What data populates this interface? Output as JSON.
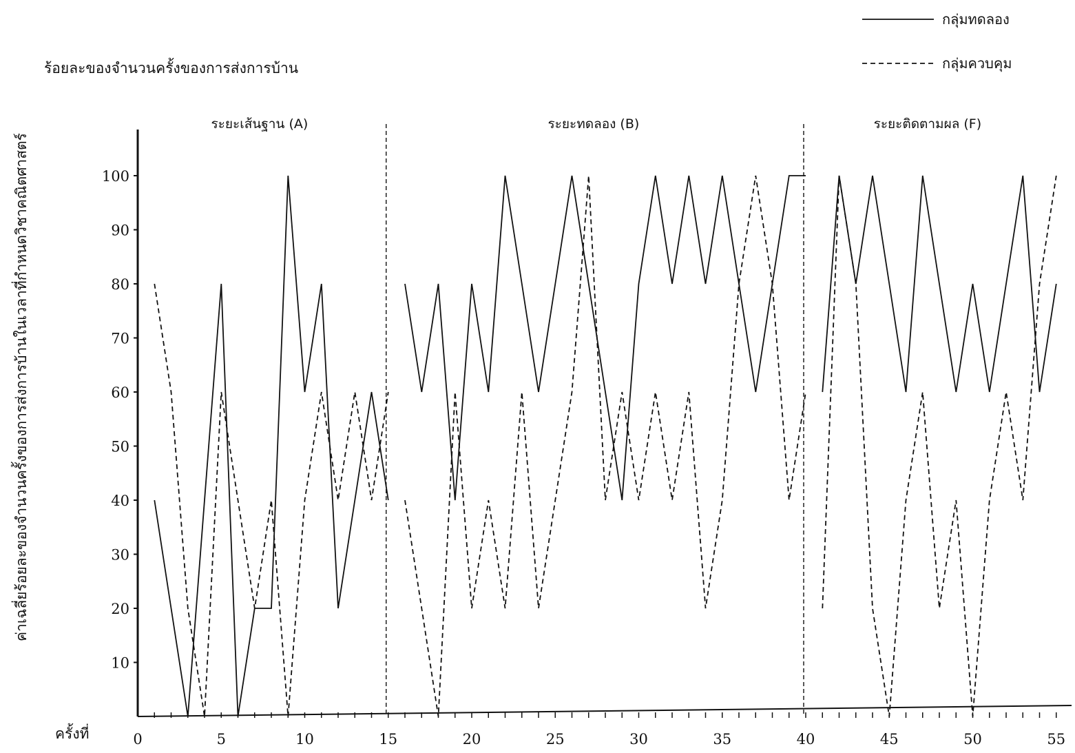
{
  "chart_data": {
    "type": "line",
    "title": "ร้อยละของจำนวนครั้งของการส่งการบ้าน",
    "ylabel": "ค่าเฉลี่ยร้อยละของจำนวนครั้งของการส่งการบ้านในเวลาที่กำหนดวิชาคณิตศาสตร์",
    "xlabel": "ครั้งที่",
    "xlim": [
      0,
      55
    ],
    "ylim": [
      0,
      100
    ],
    "xticks": [
      0,
      5,
      10,
      15,
      20,
      25,
      30,
      35,
      40,
      45,
      50,
      55
    ],
    "yticks": [
      10,
      20,
      30,
      40,
      50,
      60,
      70,
      80,
      90,
      100
    ],
    "grid": false,
    "legend_position": "top-right",
    "phases": [
      {
        "label": "ระยะเส้นฐาน (A)",
        "start": 0,
        "end": 15
      },
      {
        "label": "ระยะทดลอง (B)",
        "start": 15,
        "end": 40
      },
      {
        "label": "ระยะติดตามผล (F)",
        "start": 40,
        "end": 55
      }
    ],
    "phase_boundaries": [
      15,
      40
    ],
    "series": [
      {
        "name": "กลุ่มทดลอง",
        "style": "solid",
        "segments": [
          [
            [
              1,
              40
            ],
            [
              2,
              20
            ],
            [
              3,
              0
            ],
            [
              4,
              40
            ],
            [
              5,
              80
            ],
            [
              6,
              0
            ],
            [
              7,
              20
            ],
            [
              8,
              20
            ],
            [
              9,
              100
            ],
            [
              10,
              60
            ],
            [
              11,
              80
            ],
            [
              12,
              20
            ],
            [
              13,
              40
            ],
            [
              14,
              60
            ],
            [
              15,
              40
            ]
          ],
          [
            [
              16,
              80
            ],
            [
              17,
              60
            ],
            [
              18,
              80
            ],
            [
              19,
              40
            ],
            [
              20,
              80
            ],
            [
              21,
              60
            ],
            [
              22,
              100
            ],
            [
              23,
              80
            ],
            [
              24,
              60
            ],
            [
              25,
              80
            ],
            [
              26,
              100
            ],
            [
              27,
              80
            ],
            [
              28,
              60
            ],
            [
              29,
              40
            ],
            [
              30,
              80
            ],
            [
              31,
              100
            ],
            [
              32,
              80
            ],
            [
              33,
              100
            ],
            [
              34,
              80
            ],
            [
              35,
              100
            ],
            [
              36,
              80
            ],
            [
              37,
              60
            ],
            [
              38,
              80
            ],
            [
              39,
              100
            ],
            [
              40,
              100
            ]
          ],
          [
            [
              41,
              60
            ],
            [
              42,
              100
            ],
            [
              43,
              80
            ],
            [
              44,
              100
            ],
            [
              45,
              80
            ],
            [
              46,
              60
            ],
            [
              47,
              100
            ],
            [
              48,
              80
            ],
            [
              49,
              60
            ],
            [
              50,
              80
            ],
            [
              51,
              60
            ],
            [
              52,
              80
            ],
            [
              53,
              100
            ],
            [
              54,
              60
            ],
            [
              55,
              80
            ]
          ]
        ]
      },
      {
        "name": "กลุ่มควบคุม",
        "style": "dashed",
        "segments": [
          [
            [
              1,
              80
            ],
            [
              2,
              60
            ],
            [
              3,
              20
            ],
            [
              4,
              0
            ],
            [
              5,
              60
            ],
            [
              6,
              40
            ],
            [
              7,
              20
            ],
            [
              8,
              40
            ],
            [
              9,
              0
            ],
            [
              10,
              40
            ],
            [
              11,
              60
            ],
            [
              12,
              40
            ],
            [
              13,
              60
            ],
            [
              14,
              40
            ],
            [
              15,
              60
            ]
          ],
          [
            [
              16,
              40
            ],
            [
              17,
              20
            ],
            [
              18,
              0
            ],
            [
              19,
              60
            ],
            [
              20,
              20
            ],
            [
              21,
              40
            ],
            [
              22,
              20
            ],
            [
              23,
              60
            ],
            [
              24,
              20
            ],
            [
              25,
              40
            ],
            [
              26,
              60
            ],
            [
              27,
              100
            ],
            [
              28,
              40
            ],
            [
              29,
              60
            ],
            [
              30,
              40
            ],
            [
              31,
              60
            ],
            [
              32,
              40
            ],
            [
              33,
              60
            ],
            [
              34,
              20
            ],
            [
              35,
              40
            ],
            [
              36,
              80
            ],
            [
              37,
              100
            ],
            [
              38,
              80
            ],
            [
              39,
              40
            ],
            [
              40,
              60
            ]
          ],
          [
            [
              41,
              20
            ],
            [
              42,
              100
            ],
            [
              43,
              80
            ],
            [
              44,
              20
            ],
            [
              45,
              0
            ],
            [
              46,
              40
            ],
            [
              47,
              60
            ],
            [
              48,
              20
            ],
            [
              49,
              40
            ],
            [
              50,
              0
            ],
            [
              51,
              40
            ],
            [
              52,
              60
            ],
            [
              53,
              40
            ],
            [
              54,
              80
            ],
            [
              55,
              100
            ]
          ]
        ]
      }
    ]
  }
}
